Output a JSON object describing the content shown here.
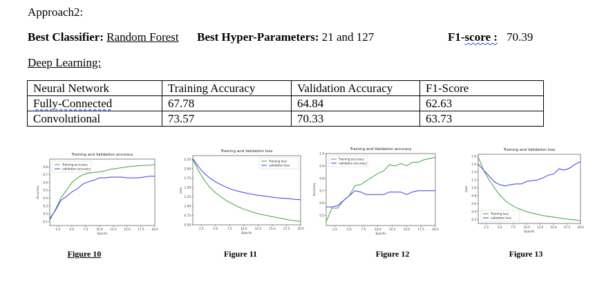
{
  "approach_title": "Approach2:",
  "best": {
    "classifier_label": "Best Classifier:",
    "classifier_value": "Random Forest",
    "hyper_label": "Best Hyper-Parameters:",
    "hyper_value": "21 and 127",
    "f1_label_a": "F1-",
    "f1_label_b": "score :",
    "f1_sep": " ",
    "f1_value": "70.39"
  },
  "dl_heading": "Deep Learning:",
  "table": {
    "headers": [
      "Neural Network",
      "Training Accuracy",
      "Validation Accuracy",
      "F1-Score"
    ],
    "rows": [
      [
        "Fully-Connected",
        "67.78",
        "64.84",
        "62.63"
      ],
      [
        "Convolutional",
        "73.57",
        "70.33",
        "63.73"
      ]
    ]
  },
  "captions": [
    "Figure  10",
    "Figure 11",
    "Figure 12",
    "Figure 13"
  ],
  "chart_data": [
    {
      "type": "line",
      "title": "Training and Validation accuracy",
      "xlabel": "Epochs",
      "ylabel": "Accuracy",
      "xlim": [
        1,
        20
      ],
      "ylim": [
        0.05,
        0.9
      ],
      "xticks": [
        "2.5",
        "5.0",
        "7.5",
        "10.0",
        "12.5",
        "15.0",
        "17.5",
        "20.0"
      ],
      "yticks": [
        "0.1",
        "0.2",
        "0.3",
        "0.4",
        "0.5",
        "0.6",
        "0.7",
        "0.8"
      ],
      "legend": "top-left",
      "series": [
        {
          "name": "Training accuracy",
          "color": "#3aa53a",
          "x": [
            1,
            2,
            3,
            4,
            5,
            6,
            7,
            8,
            9,
            10,
            11,
            12,
            13,
            14,
            15,
            16,
            17,
            18,
            19,
            20
          ],
          "y": [
            0.12,
            0.25,
            0.4,
            0.5,
            0.6,
            0.66,
            0.7,
            0.72,
            0.73,
            0.735,
            0.75,
            0.77,
            0.78,
            0.79,
            0.8,
            0.81,
            0.815,
            0.82,
            0.82,
            0.83
          ]
        },
        {
          "name": "validation accuracy",
          "color": "#3a3af0",
          "x": [
            1,
            2,
            3,
            4,
            5,
            6,
            7,
            8,
            9,
            10,
            11,
            12,
            13,
            14,
            15,
            16,
            17,
            18,
            19,
            20
          ],
          "y": [
            0.14,
            0.24,
            0.37,
            0.42,
            0.48,
            0.52,
            0.58,
            0.61,
            0.63,
            0.66,
            0.66,
            0.67,
            0.67,
            0.67,
            0.66,
            0.66,
            0.66,
            0.67,
            0.68,
            0.68
          ]
        }
      ]
    },
    {
      "type": "line",
      "title": "Training and Validation loss",
      "xlabel": "Epochs",
      "ylabel": "Loss",
      "xlim": [
        1,
        20
      ],
      "ylim": [
        0.5,
        2.35
      ],
      "xticks": [
        "2.5",
        "5.0",
        "7.5",
        "10.0",
        "12.5",
        "15.0",
        "17.5",
        "20.0"
      ],
      "yticks": [
        "0.50",
        "0.75",
        "1.00",
        "1.25",
        "1.50",
        "1.75",
        "2.00",
        "2.25"
      ],
      "legend": "top-right",
      "series": [
        {
          "name": "Training loss",
          "color": "#3aa53a",
          "x": [
            1,
            2,
            3,
            4,
            5,
            6,
            7,
            8,
            9,
            10,
            11,
            12,
            13,
            14,
            15,
            16,
            17,
            18,
            19,
            20
          ],
          "y": [
            2.25,
            1.95,
            1.7,
            1.5,
            1.36,
            1.24,
            1.14,
            1.06,
            0.98,
            0.92,
            0.87,
            0.82,
            0.78,
            0.75,
            0.72,
            0.69,
            0.66,
            0.63,
            0.61,
            0.59
          ]
        },
        {
          "name": "validation loss",
          "color": "#3a3af0",
          "x": [
            1,
            2,
            3,
            4,
            5,
            6,
            7,
            8,
            9,
            10,
            11,
            12,
            13,
            14,
            15,
            16,
            17,
            18,
            19,
            20
          ],
          "y": [
            2.27,
            2.05,
            1.88,
            1.75,
            1.65,
            1.57,
            1.5,
            1.44,
            1.4,
            1.36,
            1.33,
            1.3,
            1.28,
            1.26,
            1.24,
            1.22,
            1.21,
            1.2,
            1.18,
            1.17
          ]
        }
      ]
    },
    {
      "type": "line",
      "title": "Training and Validation accuracy",
      "xlabel": "Epochs",
      "ylabel": "Accuracy",
      "xlim": [
        1,
        20
      ],
      "ylim": [
        0.42,
        1.0
      ],
      "xticks": [
        "2.5",
        "5.0",
        "7.5",
        "10.0",
        "12.5",
        "15.0",
        "17.5",
        "20.0"
      ],
      "yticks": [
        "0.5",
        "0.6",
        "0.7",
        "0.8",
        "0.9",
        "1.0"
      ],
      "legend": "top-left",
      "series": [
        {
          "name": "Training accuracy",
          "color": "#3aa53a",
          "x": [
            1,
            2,
            3,
            4,
            5,
            6,
            7,
            8,
            9,
            10,
            11,
            12,
            13,
            14,
            15,
            16,
            17,
            18,
            19,
            20
          ],
          "y": [
            0.45,
            0.56,
            0.56,
            0.62,
            0.66,
            0.74,
            0.75,
            0.78,
            0.81,
            0.84,
            0.86,
            0.91,
            0.9,
            0.92,
            0.9,
            0.93,
            0.93,
            0.95,
            0.96,
            0.97
          ]
        },
        {
          "name": "validation accuracy",
          "color": "#3a3af0",
          "x": [
            1,
            2,
            3,
            4,
            5,
            6,
            7,
            8,
            9,
            10,
            11,
            12,
            13,
            14,
            15,
            16,
            17,
            18,
            19,
            20
          ],
          "y": [
            0.57,
            0.57,
            0.58,
            0.62,
            0.66,
            0.7,
            0.69,
            0.67,
            0.67,
            0.67,
            0.67,
            0.69,
            0.69,
            0.69,
            0.67,
            0.69,
            0.7,
            0.7,
            0.7,
            0.7
          ]
        }
      ]
    },
    {
      "type": "line",
      "title": "Training and Validation loss",
      "xlabel": "Epochs",
      "ylabel": "Loss",
      "xlim": [
        1,
        20
      ],
      "ylim": [
        0.1,
        1.85
      ],
      "xticks": [
        "2.5",
        "5.0",
        "7.5",
        "10.0",
        "12.5",
        "15.0",
        "17.5",
        "20.0"
      ],
      "yticks": [
        "0.2",
        "0.4",
        "0.6",
        "0.8",
        "1.0",
        "1.2",
        "1.4",
        "1.6",
        "1.8"
      ],
      "legend": "bottom-left",
      "series": [
        {
          "name": "Training loss",
          "color": "#3aa53a",
          "x": [
            1,
            2,
            3,
            4,
            5,
            6,
            7,
            8,
            9,
            10,
            11,
            12,
            13,
            14,
            15,
            16,
            17,
            18,
            19,
            20
          ],
          "y": [
            1.78,
            1.45,
            1.2,
            1.0,
            0.82,
            0.68,
            0.58,
            0.5,
            0.45,
            0.4,
            0.36,
            0.33,
            0.3,
            0.28,
            0.26,
            0.24,
            0.22,
            0.2,
            0.19,
            0.17
          ]
        },
        {
          "name": "validation loss",
          "color": "#3a3af0",
          "x": [
            1,
            2,
            3,
            4,
            5,
            6,
            7,
            8,
            9,
            10,
            11,
            12,
            13,
            14,
            15,
            16,
            17,
            18,
            19,
            20
          ],
          "y": [
            1.6,
            1.45,
            1.3,
            1.15,
            1.08,
            1.05,
            1.08,
            1.1,
            1.1,
            1.16,
            1.18,
            1.2,
            1.25,
            1.32,
            1.35,
            1.48,
            1.45,
            1.5,
            1.6,
            1.66
          ]
        }
      ]
    }
  ]
}
